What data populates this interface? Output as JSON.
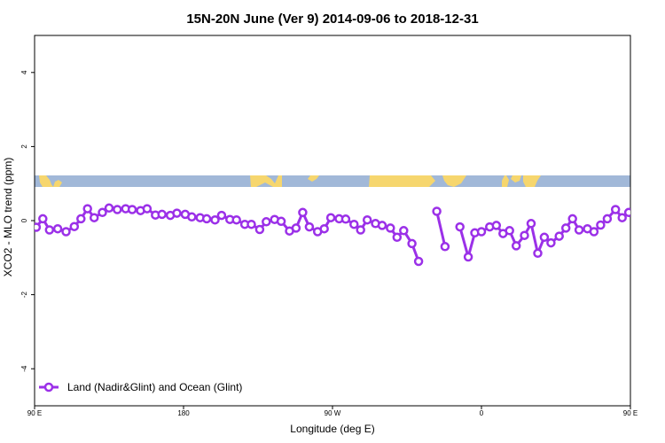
{
  "chart_data": {
    "type": "line",
    "title": "15N-20N June (Ver 9)   2014-09-06 to 2018-12-31",
    "xlabel": "Longitude (deg E)",
    "ylabel": "XCO2 - MLO trend (ppm)",
    "xlim": [
      90,
      450
    ],
    "ylim": [
      -5,
      5
    ],
    "x_ticks": [
      {
        "value": 90,
        "label": "90 E"
      },
      {
        "value": 180,
        "label": "180"
      },
      {
        "value": 270,
        "label": "90 W"
      },
      {
        "value": 360,
        "label": "0"
      },
      {
        "value": 450,
        "label": "90 E"
      },
      {
        "value": 540,
        "label": "180"
      }
    ],
    "y_ticks": [
      {
        "value": -4,
        "label": "-4"
      },
      {
        "value": -2,
        "label": "-2"
      },
      {
        "value": 0,
        "label": "0"
      },
      {
        "value": 2,
        "label": "2"
      },
      {
        "value": 4,
        "label": "4"
      }
    ],
    "grid": false,
    "legend_position": "bottom-left",
    "land_ocean_band": {
      "y_range": [
        0.8,
        1.1
      ],
      "ocean_color": "#a1b8d8",
      "land_color": "#f6d66e"
    },
    "series": [
      {
        "name": "Land (Nadir&Glint) and Ocean (Glint)",
        "color": "#9b30e8",
        "segments": [
          [
            [
              91,
              -0.18
            ],
            [
              95,
              0.05
            ],
            [
              99,
              -0.25
            ],
            [
              104,
              -0.22
            ],
            [
              109,
              -0.3
            ],
            [
              114,
              -0.16
            ],
            [
              118,
              0.05
            ],
            [
              122,
              0.32
            ],
            [
              126,
              0.08
            ],
            [
              131,
              0.22
            ],
            [
              135,
              0.34
            ],
            [
              140,
              0.3
            ],
            [
              145,
              0.32
            ],
            [
              149,
              0.3
            ],
            [
              154,
              0.27
            ],
            [
              158,
              0.32
            ],
            [
              163,
              0.15
            ],
            [
              167,
              0.17
            ],
            [
              172,
              0.14
            ],
            [
              176,
              0.2
            ],
            [
              181,
              0.17
            ],
            [
              185,
              0.1
            ],
            [
              190,
              0.08
            ],
            [
              194,
              0.05
            ],
            [
              199,
              0.02
            ],
            [
              203,
              0.14
            ],
            [
              208,
              0.03
            ],
            [
              212,
              0.02
            ],
            [
              217,
              -0.1
            ],
            [
              221,
              -0.1
            ],
            [
              226,
              -0.24
            ],
            [
              230,
              -0.03
            ],
            [
              235,
              0.03
            ],
            [
              239,
              -0.02
            ],
            [
              244,
              -0.28
            ],
            [
              248,
              -0.2
            ],
            [
              252,
              0.22
            ],
            [
              256,
              -0.17
            ],
            [
              261,
              -0.3
            ],
            [
              265,
              -0.22
            ],
            [
              269,
              0.08
            ],
            [
              274,
              0.05
            ],
            [
              278,
              0.04
            ],
            [
              283,
              -0.1
            ],
            [
              287,
              -0.25
            ],
            [
              291,
              0.02
            ],
            [
              296,
              -0.08
            ],
            [
              300,
              -0.13
            ],
            [
              305,
              -0.2
            ],
            [
              309,
              -0.45
            ],
            [
              313,
              -0.27
            ],
            [
              318,
              -0.62
            ],
            [
              322,
              -1.1
            ]
          ],
          [
            [
              333,
              0.25
            ],
            [
              338,
              -0.7
            ]
          ],
          [
            [
              347,
              -0.17
            ],
            [
              352,
              -0.98
            ],
            [
              356,
              -0.33
            ],
            [
              360,
              -0.3
            ],
            [
              365,
              -0.17
            ],
            [
              369,
              -0.13
            ],
            [
              373,
              -0.35
            ],
            [
              377,
              -0.27
            ],
            [
              381,
              -0.68
            ],
            [
              386,
              -0.4
            ],
            [
              390,
              -0.08
            ],
            [
              394,
              -0.88
            ],
            [
              398,
              -0.45
            ],
            [
              402,
              -0.6
            ],
            [
              407,
              -0.42
            ],
            [
              411,
              -0.2
            ],
            [
              415,
              0.05
            ],
            [
              419,
              -0.25
            ],
            [
              424,
              -0.22
            ],
            [
              428,
              -0.3
            ],
            [
              432,
              -0.12
            ],
            [
              436,
              0.05
            ],
            [
              441,
              0.3
            ],
            [
              445,
              0.08
            ],
            [
              449,
              0.22
            ],
            [
              453,
              0.33
            ],
            [
              457,
              0.3
            ],
            [
              462,
              0.32
            ],
            [
              466,
              0.3
            ],
            [
              471,
              0.27
            ],
            [
              475,
              0.32
            ],
            [
              479,
              0.15
            ],
            [
              484,
              0.17
            ]
          ]
        ]
      }
    ]
  }
}
